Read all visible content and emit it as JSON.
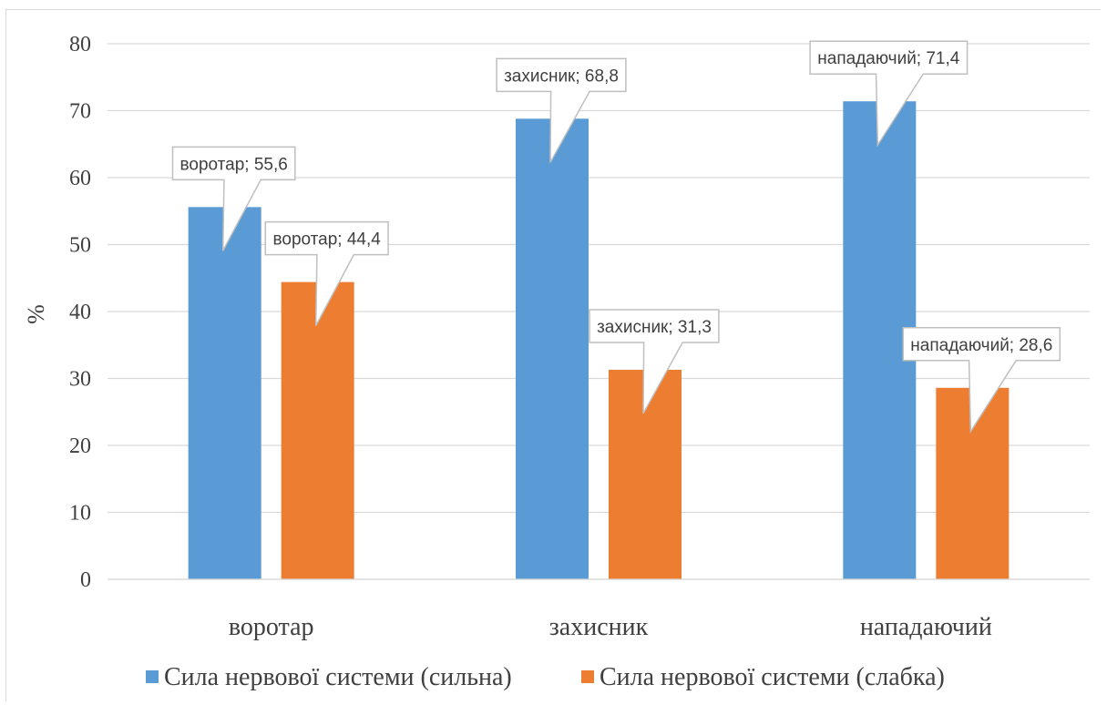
{
  "chart_data": {
    "type": "bar",
    "categories": [
      "воротар",
      "захисник",
      "нападаючий"
    ],
    "series": [
      {
        "name": "Сила нервової системи (сильна)",
        "color": "#5b9bd5",
        "values": [
          55.6,
          68.8,
          71.4
        ],
        "data_labels": [
          "воротар; 55,6",
          "захисник; 68,8",
          "нападаючий; 71,4"
        ]
      },
      {
        "name": "Сила нервової системи (слабка)",
        "color": "#ed7d31",
        "values": [
          44.4,
          31.3,
          28.6
        ],
        "data_labels": [
          "воротар; 44,4",
          "захисник; 31,3",
          "нападаючий; 28,6"
        ]
      }
    ],
    "ylabel": "%",
    "xlabel": "",
    "ylim": [
      0,
      80
    ],
    "yticks": [
      "0",
      "10",
      "20",
      "30",
      "40",
      "50",
      "60",
      "70",
      "80"
    ],
    "grid": true,
    "legend_position": "bottom"
  }
}
